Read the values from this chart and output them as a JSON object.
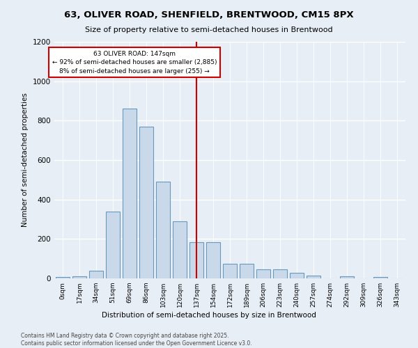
{
  "title": "63, OLIVER ROAD, SHENFIELD, BRENTWOOD, CM15 8PX",
  "subtitle": "Size of property relative to semi-detached houses in Brentwood",
  "xlabel": "Distribution of semi-detached houses by size in Brentwood",
  "ylabel": "Number of semi-detached properties",
  "bar_labels": [
    "0sqm",
    "17sqm",
    "34sqm",
    "51sqm",
    "69sqm",
    "86sqm",
    "103sqm",
    "120sqm",
    "137sqm",
    "154sqm",
    "172sqm",
    "189sqm",
    "206sqm",
    "223sqm",
    "240sqm",
    "257sqm",
    "274sqm",
    "292sqm",
    "309sqm",
    "326sqm",
    "343sqm"
  ],
  "bar_values": [
    8,
    10,
    38,
    340,
    860,
    770,
    490,
    290,
    185,
    185,
    75,
    75,
    45,
    45,
    30,
    15,
    0,
    10,
    0,
    8,
    0
  ],
  "bar_color": "#c9d9ea",
  "bar_edge_color": "#6699bb",
  "bg_color": "#e8eef5",
  "vline_index": 8,
  "vline_color": "#cc0000",
  "marker_label": "63 OLIVER ROAD: 147sqm",
  "annotation_line1": "← 92% of semi-detached houses are smaller (2,885)",
  "annotation_line2": "8% of semi-detached houses are larger (255) →",
  "annotation_box_edgecolor": "#cc0000",
  "ylim": [
    0,
    1200
  ],
  "yticks": [
    0,
    200,
    400,
    600,
    800,
    1000,
    1200
  ],
  "footer1": "Contains HM Land Registry data © Crown copyright and database right 2025.",
  "footer2": "Contains public sector information licensed under the Open Government Licence v3.0."
}
